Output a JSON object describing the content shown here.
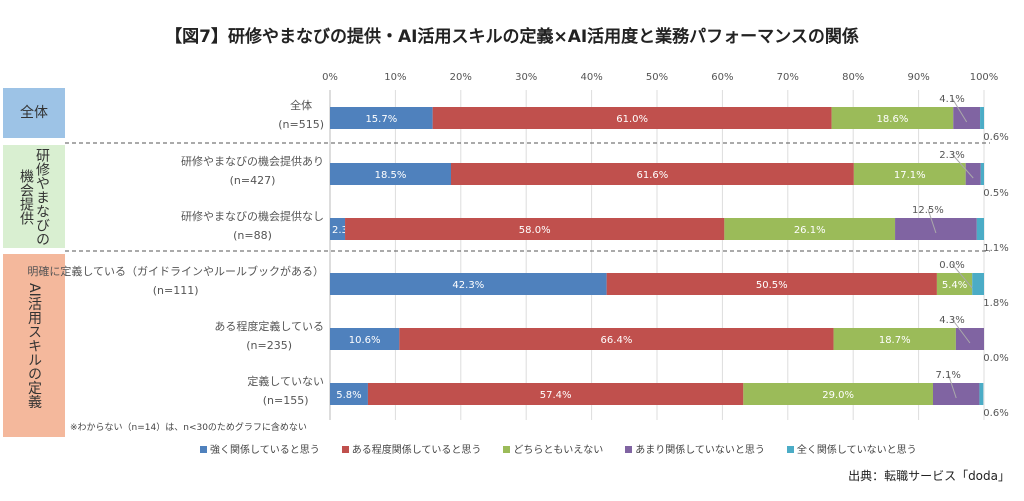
{
  "title": "【図7】研修やまなびの提供・AI活用スキルの定義×AI活用度と業務パフォーマンスの関係",
  "groups": [
    {
      "label": "全体",
      "color": "#9dc3e6"
    },
    {
      "label": "研修やまなびの機会提供",
      "color": "#d9efd1"
    },
    {
      "label": "AI活用スキルの定義",
      "color": "#f4b89c"
    }
  ],
  "note": "※わからない（n=14）は、n<30のためグラフに含めない",
  "source": "出典：転職サービス「doda」",
  "chart_data": {
    "type": "bar",
    "orientation": "horizontal",
    "stacked": true,
    "xlim": [
      0,
      100
    ],
    "x_ticks": [
      "0%",
      "10%",
      "20%",
      "30%",
      "40%",
      "50%",
      "60%",
      "70%",
      "80%",
      "90%",
      "100%"
    ],
    "grid": true,
    "legend_position": "bottom",
    "categories": [
      {
        "label": "全体",
        "n": "(n=515)"
      },
      {
        "label": "研修やまなびの機会提供あり",
        "n": "(n=427)"
      },
      {
        "label": "研修やまなびの機会提供なし",
        "n": "(n=88)"
      },
      {
        "label": "明確に定義している（ガイドラインやルールブックがある）",
        "n": "(n=111)"
      },
      {
        "label": "ある程度定義している",
        "n": "(n=235)"
      },
      {
        "label": "定義していない",
        "n": "(n=155)"
      }
    ],
    "series": [
      {
        "name": "強く関係していると思う",
        "color": "#4f81bd",
        "values": [
          15.7,
          18.5,
          2.3,
          42.3,
          10.6,
          5.8
        ]
      },
      {
        "name": "ある程度関係していると思う",
        "color": "#c0504d",
        "values": [
          61.0,
          61.6,
          58.0,
          50.5,
          66.4,
          57.4
        ]
      },
      {
        "name": "どちらともいえない",
        "color": "#9bbb59",
        "values": [
          18.6,
          17.1,
          26.1,
          5.4,
          18.7,
          29.0
        ]
      },
      {
        "name": "あまり関係していないと思う",
        "color": "#8064a2",
        "values": [
          4.1,
          2.3,
          12.5,
          0.0,
          4.3,
          7.1
        ]
      },
      {
        "name": "全く関係していないと思う",
        "color": "#4bacc6",
        "values": [
          0.6,
          0.5,
          1.1,
          1.8,
          0.0,
          0.6
        ]
      }
    ]
  }
}
